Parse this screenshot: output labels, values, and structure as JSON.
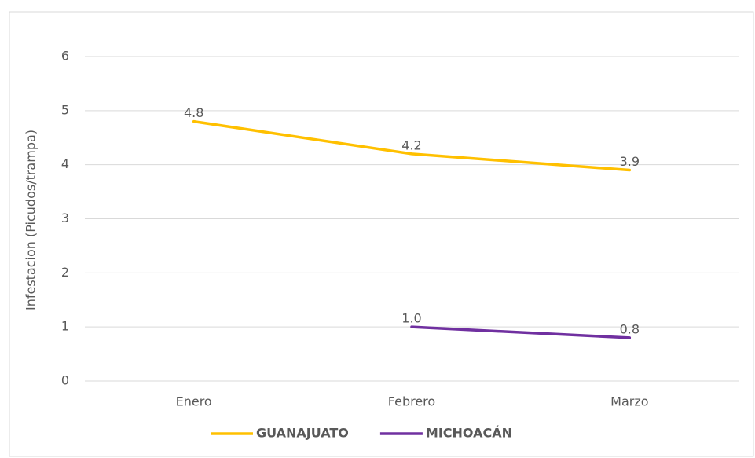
{
  "chart_data": {
    "type": "line",
    "y_label": "Infestacion (Picudos/trampa)",
    "categories": [
      "Enero",
      "Febrero",
      "Marzo"
    ],
    "series": [
      {
        "name": "GUANAJUATO",
        "color": "#FFC000",
        "values": [
          4.8,
          4.2,
          3.9
        ],
        "value_labels": [
          "4.8",
          "4.2",
          "3.9"
        ]
      },
      {
        "name": "MICHOACÁN",
        "color": "#7030A0",
        "values": [
          null,
          1.0,
          0.8
        ],
        "value_labels": [
          null,
          "1.0",
          "0.8"
        ]
      }
    ],
    "ylim": [
      0,
      6
    ],
    "yticks": [
      0,
      1,
      2,
      3,
      4,
      5,
      6
    ],
    "grid": true,
    "legend": "bottom"
  }
}
